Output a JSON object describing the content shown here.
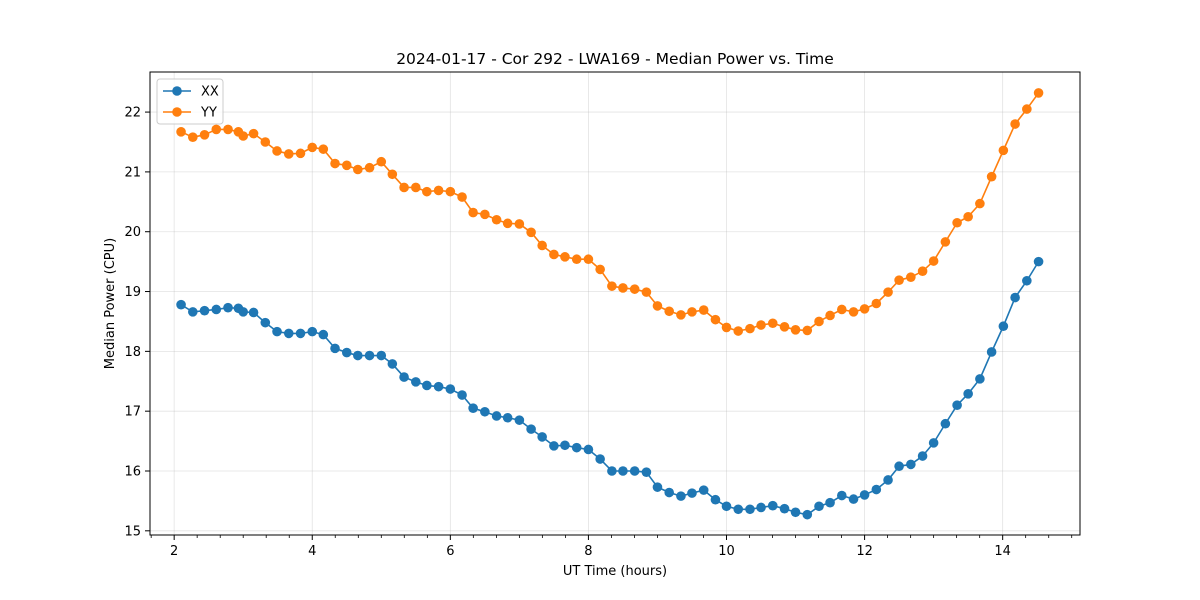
{
  "chart_data": {
    "type": "line",
    "title": "2024-01-17 - Cor 292 - LWA169 - Median Power vs. Time",
    "xlabel": "UT Time (hours)",
    "ylabel": "Median Power (CPU)",
    "xlim": [
      1.65,
      15.12
    ],
    "ylim": [
      14.93,
      22.67
    ],
    "xticks": [
      2,
      4,
      6,
      8,
      10,
      12,
      14
    ],
    "xticks_minor": [
      1.667,
      2.333,
      2.667,
      3.0,
      3.333,
      3.667,
      4.333,
      4.667,
      5.0,
      5.333,
      5.667,
      6.333,
      6.667,
      7.0,
      7.333,
      7.667,
      8.333,
      8.667,
      9.0,
      9.333,
      9.667,
      10.333,
      10.667,
      11.0,
      11.333,
      11.667,
      12.333,
      12.667,
      13.0,
      13.333,
      13.667,
      14.333,
      14.667,
      15.0
    ],
    "yticks": [
      15,
      16,
      17,
      18,
      19,
      20,
      21,
      22
    ],
    "grid": true,
    "legend_position": "top-left",
    "x": [
      2.1,
      2.27,
      2.44,
      2.61,
      2.78,
      2.93,
      3.0,
      3.15,
      3.32,
      3.49,
      3.66,
      3.83,
      4.0,
      4.16,
      4.33,
      4.5,
      4.66,
      4.83,
      5.0,
      5.16,
      5.33,
      5.5,
      5.66,
      5.83,
      6.0,
      6.17,
      6.33,
      6.5,
      6.67,
      6.83,
      7.0,
      7.17,
      7.33,
      7.5,
      7.66,
      7.83,
      8.0,
      8.17,
      8.34,
      8.5,
      8.67,
      8.84,
      9.0,
      9.17,
      9.34,
      9.5,
      9.67,
      9.84,
      10.0,
      10.17,
      10.34,
      10.5,
      10.67,
      10.84,
      11.0,
      11.17,
      11.34,
      11.5,
      11.67,
      11.84,
      12.0,
      12.17,
      12.34,
      12.5,
      12.67,
      12.84,
      13.0,
      13.17,
      13.34,
      13.5,
      13.67,
      13.84,
      14.01,
      14.18,
      14.35,
      14.52
    ],
    "series": [
      {
        "name": "XX",
        "color": "#1f77b4",
        "values": [
          18.78,
          18.66,
          18.68,
          18.7,
          18.73,
          18.72,
          18.66,
          18.65,
          18.48,
          18.33,
          18.3,
          18.3,
          18.33,
          18.28,
          18.05,
          17.98,
          17.93,
          17.93,
          17.93,
          17.79,
          17.57,
          17.49,
          17.43,
          17.41,
          17.37,
          17.27,
          17.05,
          16.99,
          16.92,
          16.89,
          16.85,
          16.7,
          16.57,
          16.42,
          16.43,
          16.39,
          16.36,
          16.2,
          16.0,
          16.0,
          16.0,
          15.98,
          15.73,
          15.64,
          15.58,
          15.63,
          15.68,
          15.52,
          15.41,
          15.36,
          15.36,
          15.39,
          15.42,
          15.37,
          15.31,
          15.27,
          15.41,
          15.47,
          15.59,
          15.53,
          15.6,
          15.69,
          15.85,
          16.08,
          16.11,
          16.25,
          16.47,
          16.79,
          17.1,
          17.29,
          17.54,
          17.99,
          18.42,
          18.9,
          19.18,
          19.5
        ]
      },
      {
        "name": "YY",
        "color": "#ff7f0e",
        "values": [
          21.67,
          21.58,
          21.62,
          21.71,
          21.71,
          21.67,
          21.6,
          21.64,
          21.5,
          21.35,
          21.3,
          21.31,
          21.41,
          21.38,
          21.14,
          21.11,
          21.04,
          21.07,
          21.17,
          20.96,
          20.74,
          20.74,
          20.67,
          20.69,
          20.67,
          20.58,
          20.32,
          20.29,
          20.2,
          20.14,
          20.13,
          19.99,
          19.77,
          19.62,
          19.58,
          19.54,
          19.54,
          19.37,
          19.09,
          19.06,
          19.04,
          18.99,
          18.76,
          18.67,
          18.61,
          18.66,
          18.69,
          18.53,
          18.4,
          18.34,
          18.38,
          18.44,
          18.47,
          18.41,
          18.36,
          18.35,
          18.5,
          18.6,
          18.7,
          18.66,
          18.71,
          18.8,
          18.99,
          19.19,
          19.24,
          19.34,
          19.51,
          19.83,
          20.15,
          20.25,
          20.47,
          20.92,
          21.36,
          21.8,
          22.05,
          22.32
        ]
      }
    ]
  }
}
